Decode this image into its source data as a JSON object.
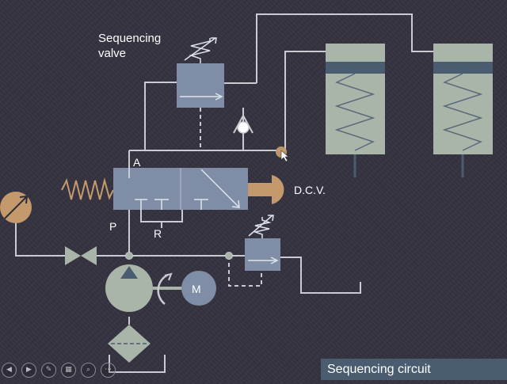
{
  "diagram": {
    "labels": {
      "sequencing_valve": "Sequencing\nvalve",
      "port_a": "A",
      "port_p": "P",
      "port_r": "R",
      "dcv": "D.C.V.",
      "motor": "M"
    }
  },
  "slide": {
    "title": "Sequencing circuit"
  },
  "toolbar": {
    "buttons": [
      {
        "name": "previous-slide-icon",
        "glyph": "◀"
      },
      {
        "name": "next-slide-icon",
        "glyph": "▶"
      },
      {
        "name": "pen-icon",
        "glyph": "✎"
      },
      {
        "name": "slides-grid-icon",
        "glyph": "▦"
      },
      {
        "name": "zoom-icon",
        "glyph": "⌕"
      },
      {
        "name": "more-options-icon",
        "glyph": "⋯"
      }
    ]
  },
  "colors": {
    "background": "#34323e",
    "component_fill": "#7f8ea6",
    "cylinder_fill": "#a8b5a8",
    "cylinder_band": "#4a5d70",
    "accent_tan": "#c49a6c",
    "line": "#c8cbd0"
  }
}
